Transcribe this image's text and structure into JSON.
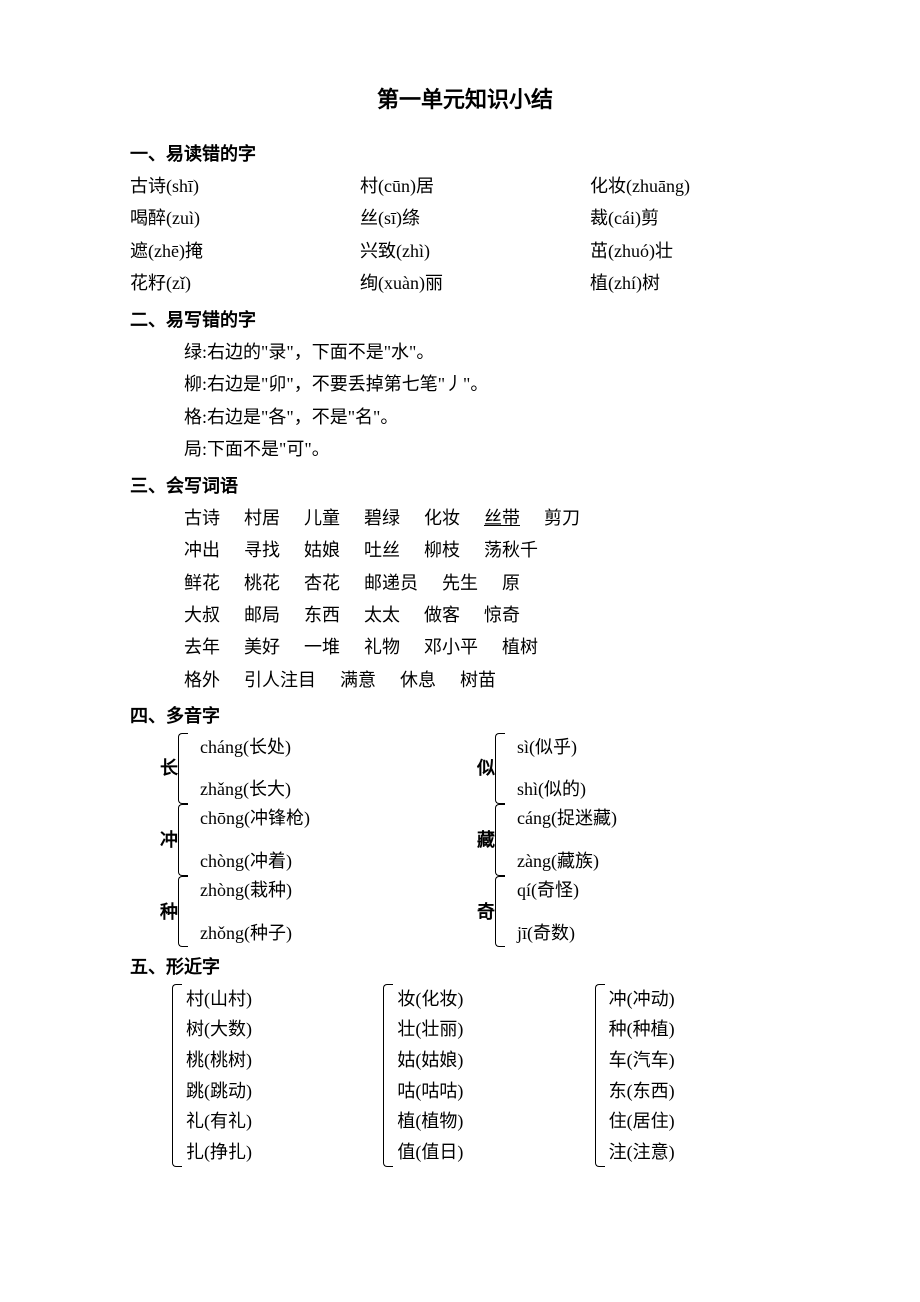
{
  "title": "第一单元知识小结",
  "section1": {
    "heading": "一、易读错的字",
    "rows": [
      [
        "古诗(shī)",
        "村(cūn)居",
        "化妆(zhuāng)"
      ],
      [
        "喝醉(zuì)",
        "丝(sī)绦",
        "裁(cái)剪"
      ],
      [
        "遮(zhē)掩",
        "兴致(zhì)",
        "茁(zhuó)壮"
      ],
      [
        "花籽(zǐ)",
        "绚(xuàn)丽",
        "植(zhí)树"
      ]
    ]
  },
  "section2": {
    "heading": "二、易写错的字",
    "lines": [
      "绿:右边的\"录\"，下面不是\"水\"。",
      "柳:右边是\"卯\"，不要丢掉第七笔\"丿\"。",
      "格:右边是\"各\"，不是\"名\"。",
      "局:下面不是\"可\"。"
    ]
  },
  "section3": {
    "heading": "三、会写词语",
    "rows": [
      [
        "古诗",
        "村居",
        "儿童",
        "碧绿",
        "化妆",
        "丝带",
        "剪刀"
      ],
      [
        "冲出",
        "寻找",
        "姑娘",
        "吐丝",
        "柳枝",
        "荡秋千"
      ],
      [
        "鲜花",
        "桃花",
        "杏花",
        "邮递员",
        "先生",
        "原"
      ],
      [
        "大叔",
        "邮局",
        "东西",
        "太太",
        "做客",
        "惊奇"
      ],
      [
        "去年",
        "美好",
        "一堆",
        "礼物",
        "邓小平",
        "植树"
      ],
      [
        "格外",
        "引人注目",
        "满意",
        "休息",
        "树苗"
      ]
    ]
  },
  "section4": {
    "heading": "四、多音字",
    "left": [
      {
        "char": "长",
        "readings": [
          "cháng(长处)",
          "zhǎng(长大)"
        ]
      },
      {
        "char": "冲",
        "readings": [
          "chōng(冲锋枪)",
          "chòng(冲着)"
        ]
      },
      {
        "char": "种",
        "readings": [
          "zhòng(栽种)",
          "zhǒng(种子)"
        ]
      }
    ],
    "right": [
      {
        "char": "似",
        "readings": [
          "sì(似乎)",
          "shì(似的)"
        ]
      },
      {
        "char": "藏",
        "readings": [
          "cáng(捉迷藏)",
          "zàng(藏族)"
        ]
      },
      {
        "char": "奇",
        "readings": [
          "qí(奇怪)",
          "jī(奇数)"
        ]
      }
    ]
  },
  "section5": {
    "heading": "五、形近字",
    "cols": [
      [
        "村(山村)",
        "树(大数)",
        "桃(桃树)",
        "跳(跳动)",
        "礼(有礼)",
        "扎(挣扎)"
      ],
      [
        "妆(化妆)",
        "壮(壮丽)",
        "姑(姑娘)",
        "咕(咕咕)",
        "植(植物)",
        "值(值日)"
      ],
      [
        "冲(冲动)",
        "种(种植)",
        "车(汽车)",
        "东(东西)",
        "住(居住)",
        "注(注意)"
      ]
    ]
  }
}
